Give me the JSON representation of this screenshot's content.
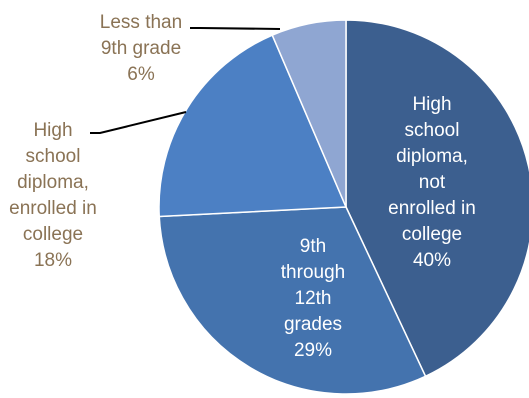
{
  "chart_data": {
    "type": "pie",
    "title": "",
    "slices": [
      {
        "name": "High school diploma, not enrolled in college",
        "label_lines": [
          "High",
          "school",
          "diploma,",
          "not",
          "enrolled in",
          "college"
        ],
        "value": 40,
        "percent_label": "40%",
        "color": "#3c5f8f",
        "label_position": "inside"
      },
      {
        "name": "9th through 12th grades",
        "label_lines": [
          "9th",
          "through",
          "12th",
          "grades"
        ],
        "value": 29,
        "percent_label": "29%",
        "color": "#4473ae",
        "label_position": "inside"
      },
      {
        "name": "High school diploma, enrolled in college",
        "label_lines": [
          "High",
          "school",
          "diploma,",
          "enrolled in",
          "college"
        ],
        "value": 18,
        "percent_label": "18%",
        "color": "#4c80c4",
        "label_position": "outside"
      },
      {
        "name": "Less than 9th grade",
        "label_lines": [
          "Less than",
          "9th grade"
        ],
        "value": 6,
        "percent_label": "6%",
        "color": "#8fa6d2",
        "label_position": "outside"
      }
    ],
    "start_angle_deg": 0,
    "direction": "clockwise",
    "label_colors": {
      "inside": "#ffffff",
      "outside": "#8a7355"
    }
  }
}
